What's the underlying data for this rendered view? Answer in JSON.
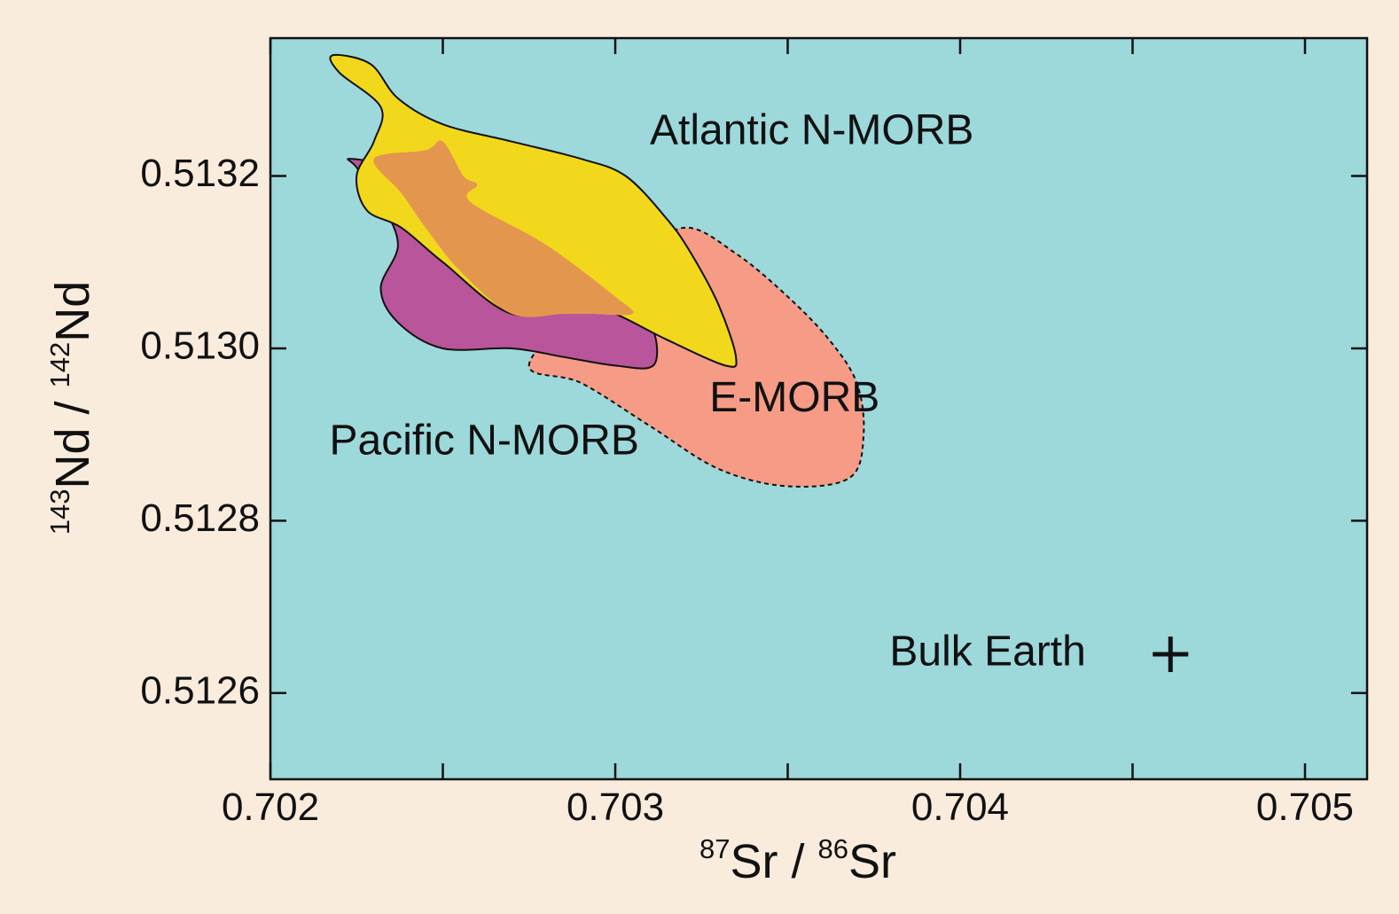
{
  "chart_data": {
    "type": "scatter",
    "title": "",
    "xlabel": {
      "sup1": "87",
      "main1": "Sr",
      "sep": " / ",
      "sup2": "86",
      "main2": "Sr"
    },
    "ylabel": {
      "sup1": "143",
      "main1": "Nd",
      "sep": " / ",
      "sup2": "142",
      "main2": "Nd"
    },
    "xlim": [
      0.702,
      0.70518
    ],
    "ylim": [
      0.5125,
      0.51336
    ],
    "xticks": [
      "0.702",
      "0.703",
      "0.704",
      "0.705"
    ],
    "yticks": [
      "0.5126",
      "0.5128",
      "0.5130",
      "0.5132"
    ],
    "grid": false,
    "colors": {
      "plot_background": "#9dd8db",
      "page_background": "#f9ecdd",
      "atlantic": "#f2d81c",
      "pacific": "#b9559a",
      "emorb": "#f59b86",
      "overlap": "#e3974e"
    },
    "regions": [
      {
        "name": "E-MORB",
        "label": "E-MORB",
        "label_pos": [
          0.70352,
          0.51294
        ],
        "dashed": true,
        "points": [
          [
            0.70275,
            0.51298
          ],
          [
            0.7029,
            0.51305
          ],
          [
            0.70305,
            0.5131
          ],
          [
            0.7032,
            0.51314
          ],
          [
            0.70335,
            0.51311
          ],
          [
            0.7035,
            0.51306
          ],
          [
            0.70362,
            0.51301
          ],
          [
            0.7037,
            0.51296
          ],
          [
            0.70372,
            0.5129
          ],
          [
            0.70368,
            0.51285
          ],
          [
            0.7035,
            0.51284
          ],
          [
            0.7033,
            0.51286
          ],
          [
            0.7031,
            0.51291
          ],
          [
            0.7029,
            0.51296
          ]
        ]
      },
      {
        "name": "Pacific N-MORB",
        "label": "Pacific N-MORB",
        "label_pos": [
          0.70262,
          0.51289
        ],
        "dashed": false,
        "points": [
          [
            0.70223,
            0.51322
          ],
          [
            0.70235,
            0.51321
          ],
          [
            0.70246,
            0.51318
          ],
          [
            0.70258,
            0.51315
          ],
          [
            0.7027,
            0.51312
          ],
          [
            0.70282,
            0.51308
          ],
          [
            0.70294,
            0.51305
          ],
          [
            0.70304,
            0.51304
          ],
          [
            0.70311,
            0.51302
          ],
          [
            0.70311,
            0.51298
          ],
          [
            0.703,
            0.51298
          ],
          [
            0.70285,
            0.51299
          ],
          [
            0.7027,
            0.513
          ],
          [
            0.7025,
            0.513
          ],
          [
            0.70237,
            0.51303
          ],
          [
            0.70232,
            0.51307
          ],
          [
            0.70237,
            0.51312
          ],
          [
            0.70232,
            0.51317
          ],
          [
            0.70225,
            0.51321
          ]
        ]
      },
      {
        "name": "Atlantic N-MORB",
        "label": "Atlantic N-MORB",
        "label_pos": [
          0.70357,
          0.51325
        ],
        "dashed": false,
        "points": [
          [
            0.70218,
            0.51334
          ],
          [
            0.70229,
            0.51333
          ],
          [
            0.70237,
            0.51329
          ],
          [
            0.7025,
            0.51326
          ],
          [
            0.7027,
            0.51324
          ],
          [
            0.7029,
            0.51322
          ],
          [
            0.70303,
            0.5132
          ],
          [
            0.70315,
            0.51315
          ],
          [
            0.70322,
            0.51311
          ],
          [
            0.7033,
            0.51305
          ],
          [
            0.70335,
            0.51299
          ],
          [
            0.70332,
            0.51298
          ],
          [
            0.70315,
            0.51301
          ],
          [
            0.703,
            0.51304
          ],
          [
            0.7029,
            0.51305
          ],
          [
            0.7027,
            0.51304
          ],
          [
            0.7025,
            0.5131
          ],
          [
            0.70238,
            0.51314
          ],
          [
            0.70228,
            0.51316
          ],
          [
            0.70225,
            0.5132
          ],
          [
            0.7023,
            0.51324
          ],
          [
            0.70232,
            0.51328
          ],
          [
            0.7022,
            0.51332
          ]
        ]
      },
      {
        "name": "overlap",
        "label": "",
        "dashed": false,
        "fill_only": true,
        "points": [
          [
            0.7023,
            0.51322
          ],
          [
            0.70245,
            0.51323
          ],
          [
            0.7025,
            0.51324
          ],
          [
            0.70256,
            0.5132
          ],
          [
            0.7026,
            0.51319
          ],
          [
            0.70258,
            0.51317
          ],
          [
            0.7028,
            0.51312
          ],
          [
            0.703,
            0.51306
          ],
          [
            0.70305,
            0.51304
          ],
          [
            0.70293,
            0.51304
          ],
          [
            0.70285,
            0.51304
          ],
          [
            0.7027,
            0.51304
          ],
          [
            0.70255,
            0.51309
          ],
          [
            0.70245,
            0.51314
          ],
          [
            0.70238,
            0.51318
          ]
        ]
      }
    ],
    "points": [
      {
        "name": "Bulk Earth",
        "label": "Bulk Earth",
        "x": 0.70461,
        "y": 0.512645,
        "marker": "+",
        "label_pos": [
          0.70408,
          0.512645
        ]
      }
    ]
  }
}
